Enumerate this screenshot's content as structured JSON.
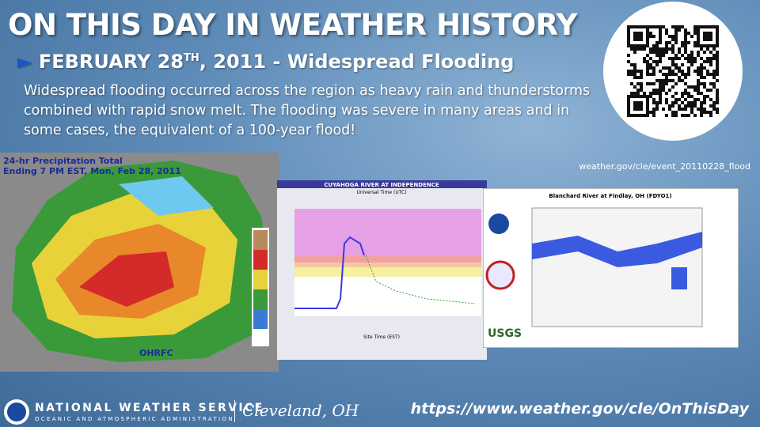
{
  "header": {
    "title": "ON THIS DAY IN WEATHER HISTORY",
    "subtitle": {
      "main": "FEBRUARY 28",
      "sup": "TH",
      "rest": ", 2011 - Widespread Flooding"
    },
    "description": "Widespread flooding occurred across the region as heavy rain and thunderstorms combined with rapid snow melt. The flooding was severe in many areas and in some cases, the equivalent of a 100-year flood!"
  },
  "qr": {
    "caption": "weather.gov/cle/event_20110228_flood"
  },
  "images": [
    {
      "title": "24-hr Precipitation Total",
      "subtitle": "Ending 7 PM EST, Mon, Feb 28, 2011",
      "credit": "OHRFC"
    },
    {
      "title": "CUYAHOGA RIVER AT INDEPENDENCE",
      "subtitle": "Universal Time (UTC)",
      "axis": "Site Time (EST)"
    },
    {
      "title": "Blanchard River at Findlay, OH (FDYO1)",
      "credit": "USGS"
    }
  ],
  "footer": {
    "agency": "NATIONAL WEATHER SERVICE",
    "agency_sub": "OCEANIC AND ATMOSPHERIC ADMINISTRATION",
    "office": "Cleveland, OH",
    "url": "https://www.weather.gov/cle/OnThisDay"
  }
}
